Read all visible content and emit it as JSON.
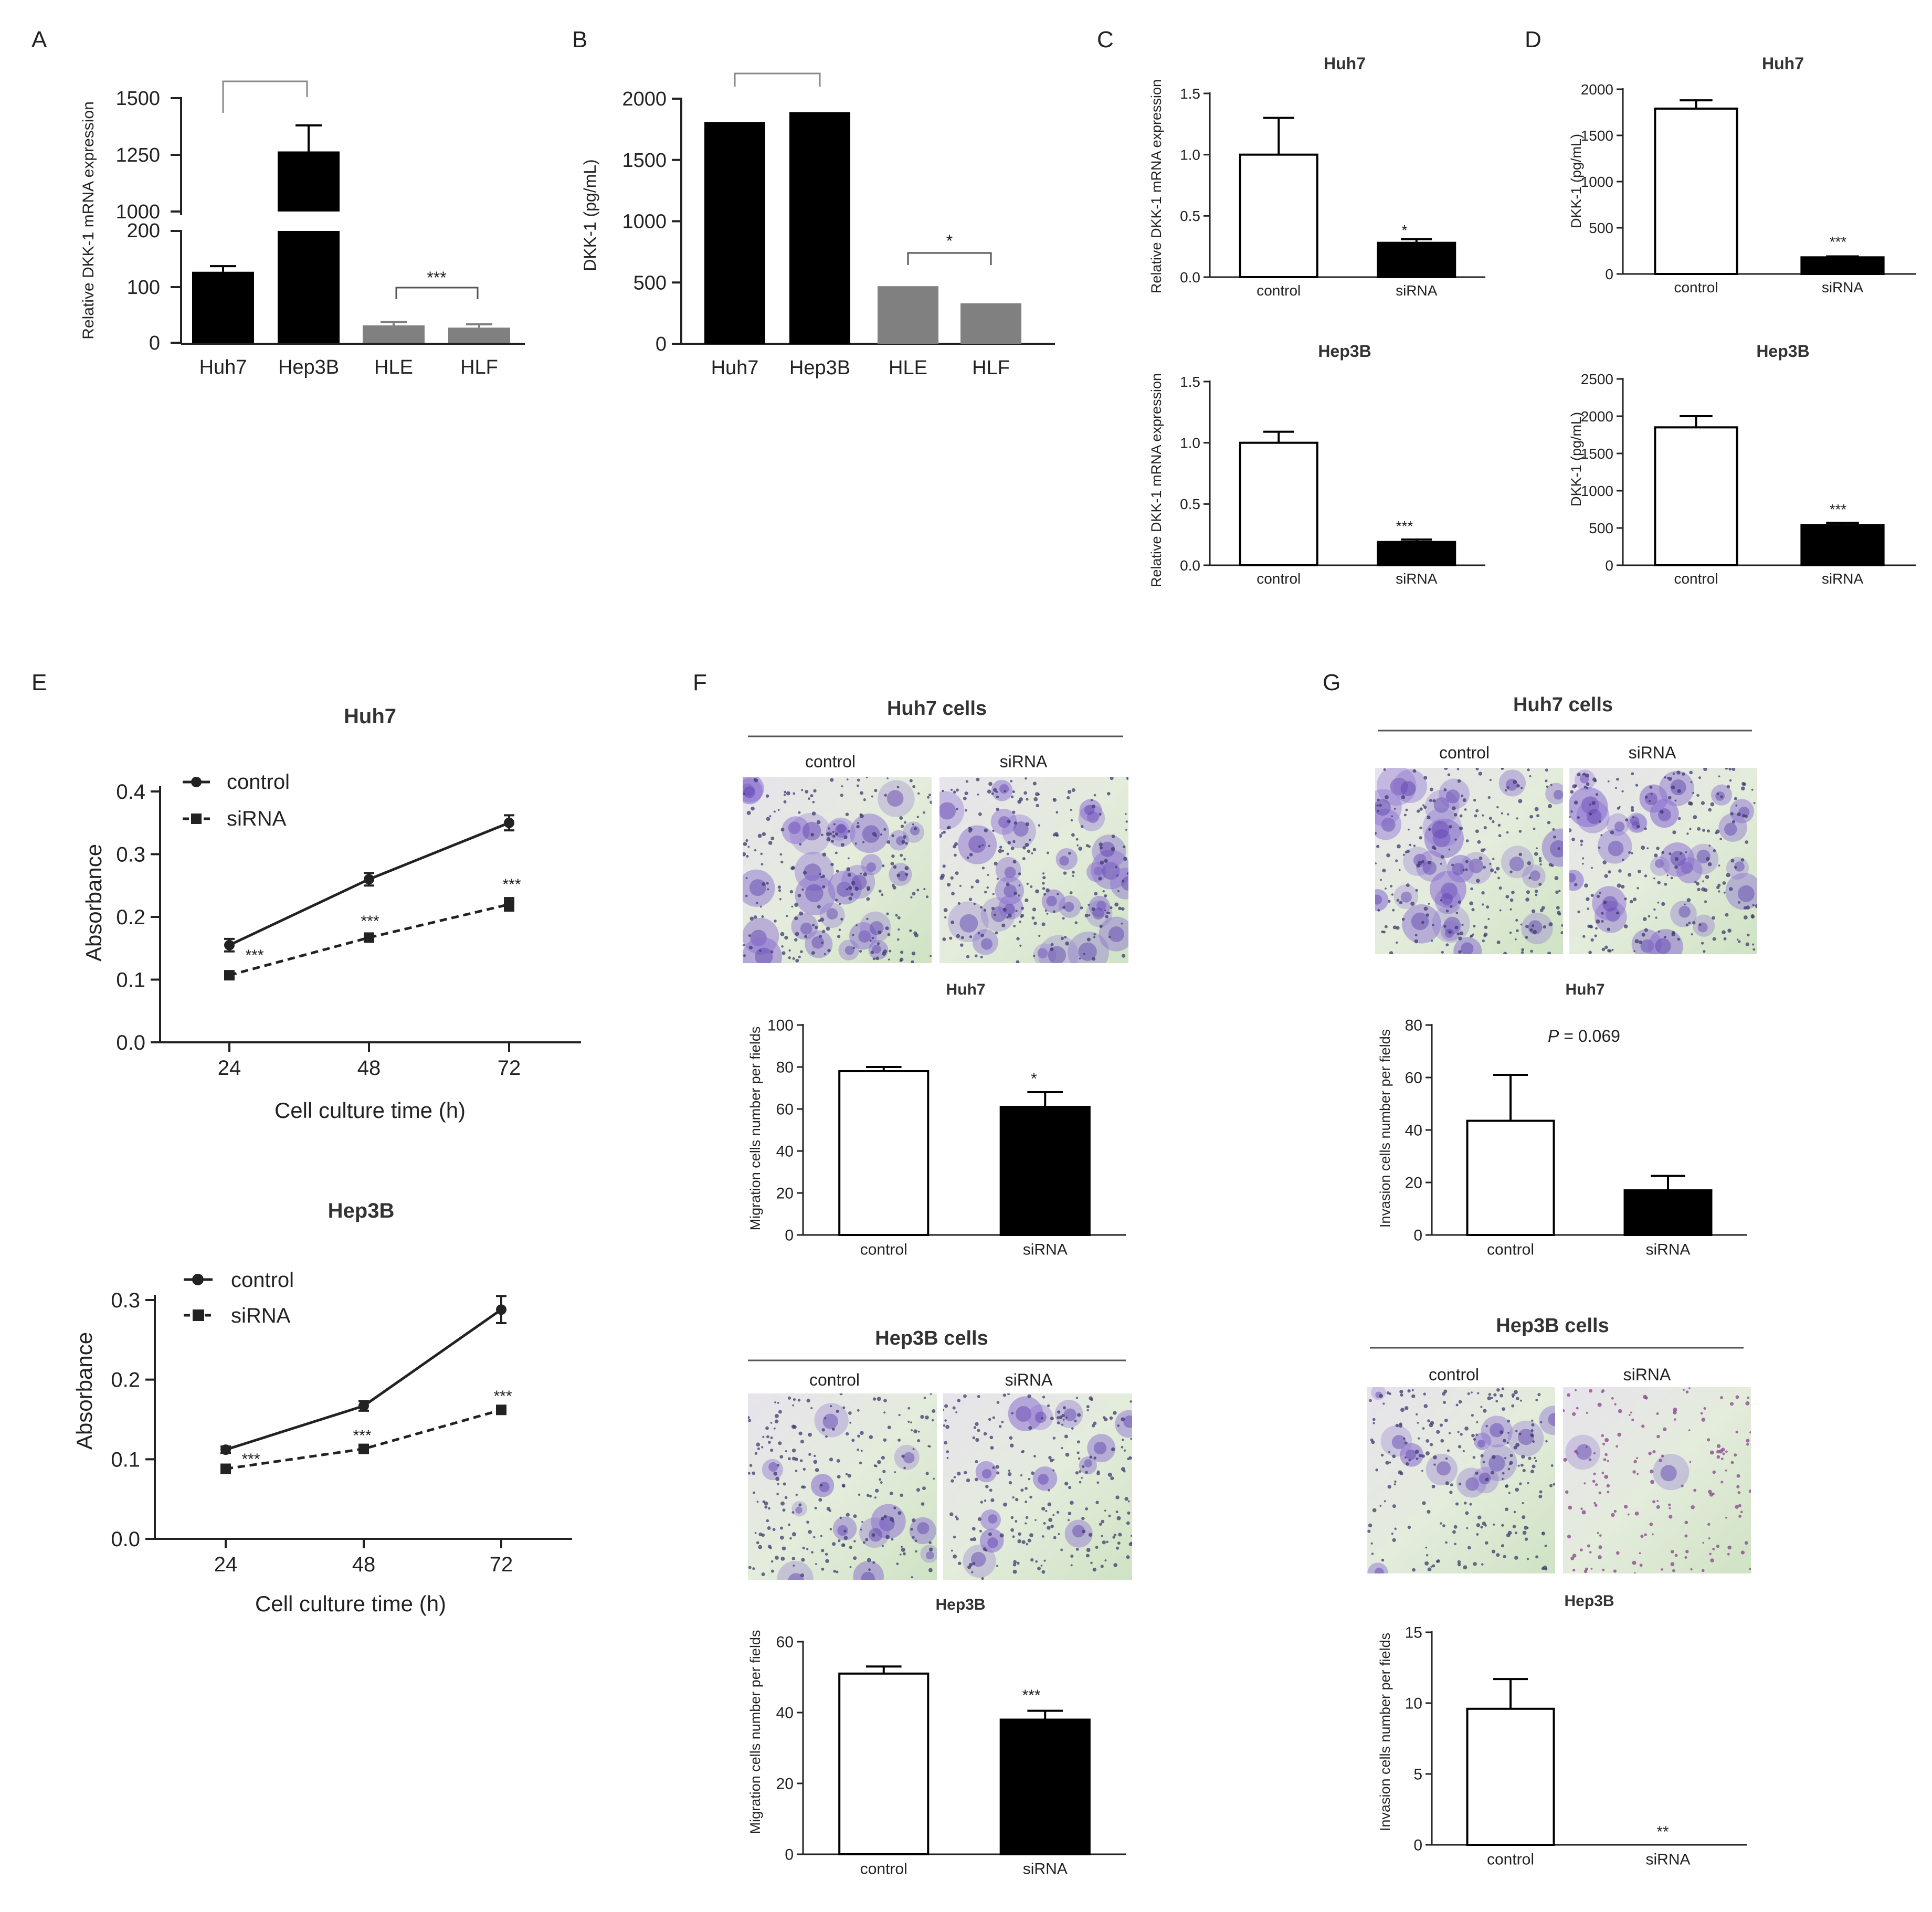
{
  "panels": {
    "A": {
      "letter": "A",
      "ylabel": "Relative DKK-1 mRNA expression",
      "categories": [
        "Huh7",
        "Hep3B",
        "HLE",
        "HLF"
      ],
      "upper_ticks": [
        "1000",
        "1250",
        "1500"
      ],
      "lower_ticks": [
        "0",
        "100",
        "200"
      ],
      "sig": "***"
    },
    "B": {
      "letter": "B",
      "ylabel": "DKK-1 (pg/mL)",
      "categories": [
        "Huh7",
        "Hep3B",
        "HLE",
        "HLF"
      ],
      "sig": "*"
    },
    "C": {
      "letter": "C",
      "top_title": "Huh7",
      "bottom_title": "Hep3B",
      "ylabel": "Relative DKK-1 mRNA expression",
      "categories": [
        "control",
        "siRNA"
      ],
      "sig_top": "*",
      "sig_bottom": "***"
    },
    "D": {
      "letter": "D",
      "top_title": "Huh7",
      "bottom_title": "Hep3B",
      "ylabel": "DKK-1 (pg/mL)",
      "categories": [
        "control",
        "siRNA"
      ],
      "sig_top": "***",
      "sig_bottom": "***"
    },
    "E": {
      "letter": "E",
      "top_title": "Huh7",
      "bottom_title": "Hep3B",
      "ylabel": "Absorbance",
      "xlabel": "Cell culture time (h)",
      "legend": [
        "control",
        "siRNA"
      ],
      "sig": "***"
    },
    "F": {
      "letter": "F",
      "top_header": "Huh7 cells",
      "bottom_header": "Hep3B cells",
      "micro_labels": [
        "control",
        "siRNA"
      ],
      "top_chart_title": "Huh7",
      "bottom_chart_title": "Hep3B",
      "ylabel": "Migration cells number per fields",
      "categories": [
        "control",
        "siRNA"
      ],
      "sig_top": "*",
      "sig_bottom": "***"
    },
    "G": {
      "letter": "G",
      "top_header": "Huh7 cells",
      "bottom_header": "Hep3B cells",
      "micro_labels": [
        "control",
        "siRNA"
      ],
      "top_chart_title": "Huh7",
      "bottom_chart_title": "Hep3B",
      "ylabel": "Invasion cells number per fields",
      "categories": [
        "control",
        "siRNA"
      ],
      "p_label": "P",
      "p_value": " = 0.069",
      "sig_bottom": "**"
    }
  },
  "colors": {
    "black": "#000000",
    "gray": "#808080",
    "white": "#ffffff",
    "stain": "#7a4fb8",
    "bg_green": "#dfe9d3"
  },
  "chart_data": [
    {
      "id": "A",
      "type": "bar",
      "ylabel": "Relative DKK-1 mRNA expression",
      "categories": [
        "Huh7",
        "Hep3B",
        "HLE",
        "HLF"
      ],
      "values": [
        127,
        1265,
        31,
        27
      ],
      "errors": [
        10,
        115,
        6,
        6
      ],
      "colors": [
        "#000000",
        "#000000",
        "#808080",
        "#808080"
      ],
      "y_axis_break": {
        "lower": [
          0,
          200
        ],
        "upper": [
          1000,
          1500
        ]
      },
      "annotations": [
        "***"
      ]
    },
    {
      "id": "B",
      "type": "bar",
      "ylabel": "DKK-1 (pg/mL)",
      "categories": [
        "Huh7",
        "Hep3B",
        "HLE",
        "HLF"
      ],
      "values": [
        1810,
        1890,
        470,
        330
      ],
      "colors": [
        "#000000",
        "#000000",
        "#808080",
        "#808080"
      ],
      "ylim": [
        0,
        2000
      ],
      "yticks": [
        0,
        500,
        1000,
        1500,
        2000
      ],
      "annotations": [
        "*"
      ]
    },
    {
      "id": "C-Huh7",
      "type": "bar",
      "title": "Huh7",
      "ylabel": "Relative DKK-1 mRNA expression",
      "categories": [
        "control",
        "siRNA"
      ],
      "values": [
        1.0,
        0.28
      ],
      "errors": [
        0.3,
        0.03
      ],
      "ylim": [
        0,
        1.5
      ],
      "yticks": [
        0.0,
        0.5,
        1.0,
        1.5
      ],
      "annotations": [
        "*"
      ]
    },
    {
      "id": "C-Hep3B",
      "type": "bar",
      "title": "Hep3B",
      "ylabel": "Relative DKK-1 mRNA expression",
      "categories": [
        "control",
        "siRNA"
      ],
      "values": [
        1.0,
        0.19
      ],
      "errors": [
        0.09,
        0.02
      ],
      "ylim": [
        0,
        1.5
      ],
      "yticks": [
        0.0,
        0.5,
        1.0,
        1.5
      ],
      "annotations": [
        "***"
      ]
    },
    {
      "id": "D-Huh7",
      "type": "bar",
      "title": "Huh7",
      "ylabel": "DKK-1 (pg/mL)",
      "categories": [
        "control",
        "siRNA"
      ],
      "values": [
        1790,
        180
      ],
      "errors": [
        90,
        10
      ],
      "ylim": [
        0,
        2000
      ],
      "yticks": [
        0,
        500,
        1000,
        1500,
        2000
      ],
      "annotations": [
        "***"
      ]
    },
    {
      "id": "D-Hep3B",
      "type": "bar",
      "title": "Hep3B",
      "ylabel": "DKK-1 (pg/mL)",
      "categories": [
        "control",
        "siRNA"
      ],
      "values": [
        1850,
        540
      ],
      "errors": [
        150,
        30
      ],
      "ylim": [
        0,
        2500
      ],
      "yticks": [
        0,
        500,
        1000,
        1500,
        2000,
        2500
      ],
      "annotations": [
        "***"
      ]
    },
    {
      "id": "E-Huh7",
      "type": "line",
      "title": "Huh7",
      "xlabel": "Cell culture time (h)",
      "ylabel": "Absorbance",
      "x": [
        24,
        48,
        72
      ],
      "series": [
        {
          "name": "control",
          "values": [
            0.155,
            0.26,
            0.35
          ],
          "errors": [
            0.01,
            0.01,
            0.012
          ]
        },
        {
          "name": "siRNA",
          "values": [
            0.107,
            0.167,
            0.22
          ],
          "errors": [
            0.004,
            0.004,
            0.01
          ]
        }
      ],
      "ylim": [
        0,
        0.4
      ],
      "yticks": [
        0.0,
        0.1,
        0.2,
        0.3,
        0.4
      ],
      "annotations": [
        "***",
        "***",
        "***"
      ]
    },
    {
      "id": "E-Hep3B",
      "type": "line",
      "title": "Hep3B",
      "xlabel": "Cell culture time (h)",
      "ylabel": "Absorbance",
      "x": [
        24,
        48,
        72
      ],
      "series": [
        {
          "name": "control",
          "values": [
            0.112,
            0.167,
            0.288
          ],
          "errors": [
            0.004,
            0.006,
            0.017
          ]
        },
        {
          "name": "siRNA",
          "values": [
            0.088,
            0.113,
            0.162
          ],
          "errors": [
            0.003,
            0.004,
            0.005
          ]
        }
      ],
      "ylim": [
        0,
        0.3
      ],
      "yticks": [
        0.0,
        0.1,
        0.2,
        0.3
      ],
      "annotations": [
        "***",
        "***",
        "***"
      ]
    },
    {
      "id": "F-Huh7",
      "type": "bar",
      "title": "Huh7",
      "ylabel": "Migration cells number per fields",
      "categories": [
        "control",
        "siRNA"
      ],
      "values": [
        78,
        61
      ],
      "errors": [
        2,
        7
      ],
      "ylim": [
        0,
        100
      ],
      "yticks": [
        0,
        20,
        40,
        60,
        80,
        100
      ],
      "annotations": [
        "*"
      ]
    },
    {
      "id": "F-Hep3B",
      "type": "bar",
      "title": "Hep3B",
      "ylabel": "Migration cells number per fields",
      "categories": [
        "control",
        "siRNA"
      ],
      "values": [
        51,
        38
      ],
      "errors": [
        2,
        2.5
      ],
      "ylim": [
        0,
        60
      ],
      "yticks": [
        0,
        20,
        40,
        60
      ],
      "annotations": [
        "***"
      ]
    },
    {
      "id": "G-Huh7",
      "type": "bar",
      "title": "Huh7",
      "ylabel": "Invasion cells number per fields",
      "categories": [
        "control",
        "siRNA"
      ],
      "values": [
        43.5,
        17
      ],
      "errors": [
        17.5,
        5.5
      ],
      "ylim": [
        0,
        80
      ],
      "yticks": [
        0,
        20,
        40,
        60,
        80
      ],
      "annotations": [
        "P = 0.069"
      ]
    },
    {
      "id": "G-Hep3B",
      "type": "bar",
      "title": "Hep3B",
      "ylabel": "Invasion cells number per fields",
      "categories": [
        "control",
        "siRNA"
      ],
      "values": [
        9.6,
        0
      ],
      "errors": [
        2.1,
        0
      ],
      "ylim": [
        0,
        15
      ],
      "yticks": [
        0,
        5,
        10,
        15
      ],
      "annotations": [
        "**"
      ]
    }
  ]
}
